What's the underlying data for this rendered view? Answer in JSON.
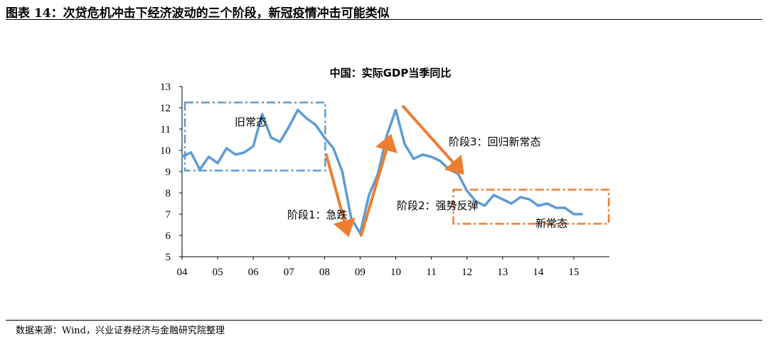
{
  "figure": {
    "title": "图表 14：次贷危机冲击下经济波动的三个阶段，新冠疫情冲击可能类似",
    "source": "数据来源：Wind，兴业证券经济与金融研究院整理"
  },
  "chart_data": {
    "type": "line",
    "title": "中国：实际GDP当季同比",
    "xlabel": "",
    "ylabel": "",
    "ylim": [
      5,
      13
    ],
    "yticks": [
      "5",
      "6",
      "7",
      "8",
      "9",
      "10",
      "11",
      "12",
      "13"
    ],
    "xticks": [
      "04",
      "05",
      "06",
      "07",
      "08",
      "09",
      "10",
      "11",
      "12",
      "13",
      "14",
      "15"
    ],
    "grid": false,
    "series": [
      {
        "color": "#5b9bd5",
        "x": [
          "2004Q1",
          "2004Q2",
          "2004Q3",
          "2004Q4",
          "2005Q1",
          "2005Q2",
          "2005Q3",
          "2005Q4",
          "2006Q1",
          "2006Q2",
          "2006Q3",
          "2006Q4",
          "2007Q1",
          "2007Q2",
          "2007Q3",
          "2007Q4",
          "2008Q1",
          "2008Q2",
          "2008Q3",
          "2008Q4",
          "2009Q1",
          "2009Q2",
          "2009Q3",
          "2009Q4",
          "2010Q1",
          "2010Q2",
          "2010Q3",
          "2010Q4",
          "2011Q1",
          "2011Q2",
          "2011Q3",
          "2011Q4",
          "2012Q1",
          "2012Q2",
          "2012Q3",
          "2012Q4",
          "2013Q1",
          "2013Q2",
          "2013Q3",
          "2013Q4",
          "2014Q1",
          "2014Q2",
          "2014Q3",
          "2014Q4",
          "2015Q1",
          "2015Q2"
        ],
        "values": [
          9.7,
          9.9,
          9.1,
          9.7,
          9.4,
          10.1,
          9.8,
          9.9,
          10.2,
          11.7,
          10.6,
          10.4,
          11.1,
          11.9,
          11.5,
          11.2,
          10.6,
          10.1,
          9.0,
          6.8,
          6.1,
          7.9,
          8.9,
          10.7,
          11.9,
          10.3,
          9.6,
          9.8,
          9.7,
          9.5,
          9.1,
          8.9,
          8.1,
          7.6,
          7.4,
          7.9,
          7.7,
          7.5,
          7.8,
          7.7,
          7.4,
          7.5,
          7.3,
          7.3,
          7.0,
          7.0
        ]
      }
    ],
    "annotations": {
      "old_normal_label": "旧常态",
      "stage1_label": "阶段1：急跌",
      "stage2_label": "阶段2：强势反弹",
      "stage3_label": "阶段3：回归新常态",
      "new_normal_label": "新常态",
      "arrow_color": "#ed7d31",
      "old_box_color": "#5b9bd5",
      "new_box_color": "#ed7d31"
    }
  }
}
